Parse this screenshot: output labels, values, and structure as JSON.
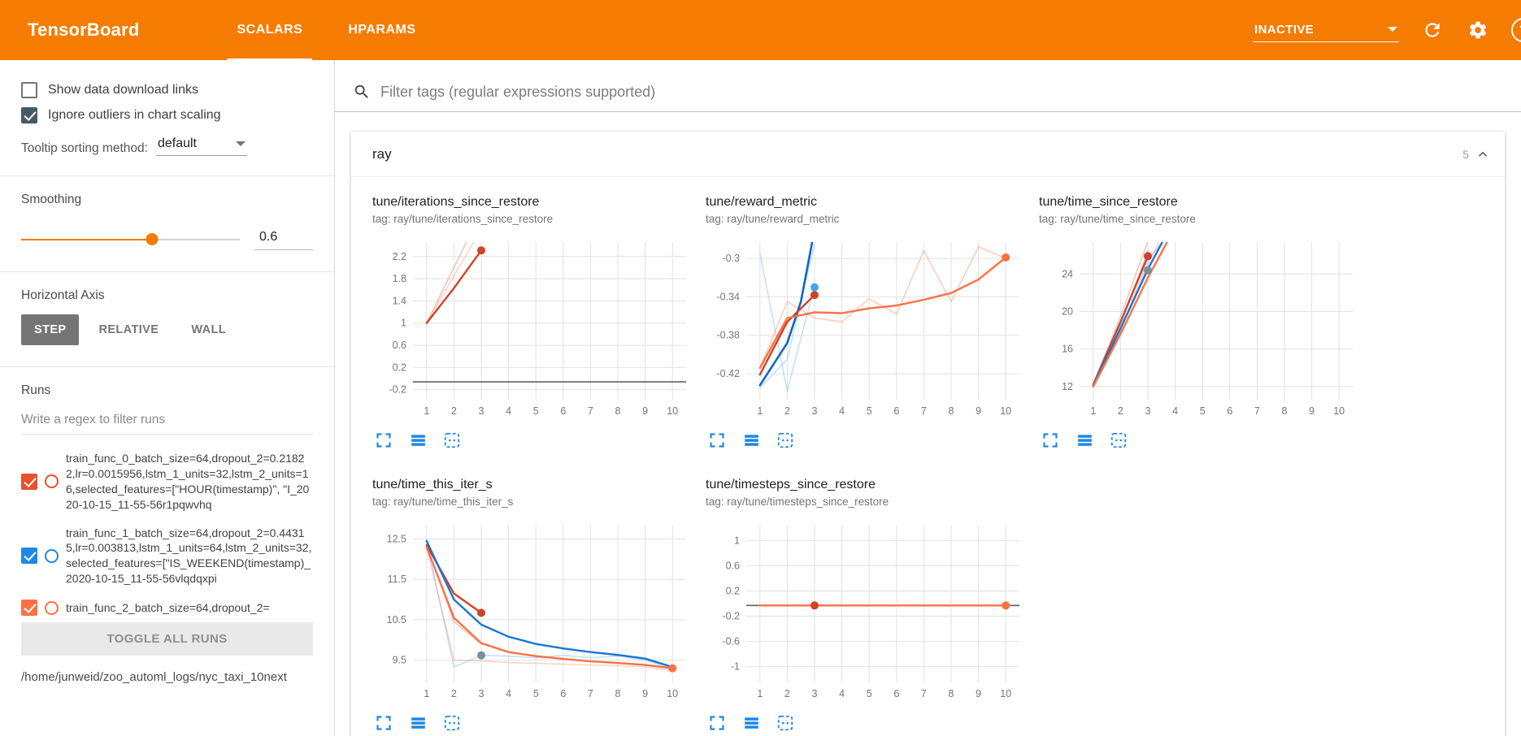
{
  "header": {
    "title": "TensorBoard",
    "tabs": [
      {
        "label": "SCALARS",
        "active": true
      },
      {
        "label": "HPARAMS",
        "active": false
      }
    ],
    "status_dropdown": {
      "value": "INACTIVE"
    },
    "icons": [
      "chevron-down-icon",
      "refresh-icon",
      "settings-icon",
      "help-icon"
    ]
  },
  "colors": {
    "accent": "#f57c00",
    "tool_icon_blue": "#1e88e5",
    "run0": "#cf4327",
    "run1": "#1e88e5",
    "run2": "#ff7043"
  },
  "sidebar": {
    "checkboxes": [
      {
        "label": "Show data download links",
        "checked": false
      },
      {
        "label": "Ignore outliers in chart scaling",
        "checked": true
      }
    ],
    "tooltip_sorting": {
      "label": "Tooltip sorting method:",
      "value": "default"
    },
    "smoothing": {
      "label": "Smoothing",
      "value": "0.6",
      "percent": 60
    },
    "horizontal_axis": {
      "label": "Horizontal Axis",
      "options": [
        {
          "label": "STEP",
          "selected": true
        },
        {
          "label": "RELATIVE",
          "selected": false
        },
        {
          "label": "WALL",
          "selected": false
        }
      ]
    },
    "runs": {
      "label": "Runs",
      "filter_placeholder": "Write a regex to filter runs",
      "items": [
        {
          "label": "train_func_0_batch_size=64,dropout_2=0.21822,lr=0.0015956,lstm_1_units=32,lstm_2_units=16,selected_features=[\"HOUR(timestamp)\", \"I_2020-10-15_11-55-56r1pqwvhq",
          "checked": true,
          "color": "#e8512b"
        },
        {
          "label": "train_func_1_batch_size=64,dropout_2=0.44315,lr=0.003813,lstm_1_units=64,lstm_2_units=32,selected_features=[\"IS_WEEKEND(timestamp)_2020-10-15_11-55-56vlqdqxpi",
          "checked": true,
          "color": "#1e88e5"
        },
        {
          "label": "train_func_2_batch_size=64,dropout_2=",
          "checked": true,
          "color": "#ff7043"
        }
      ],
      "toggle_all_label": "TOGGLE ALL RUNS",
      "log_dir": "/home/junweid/zoo_automl_logs/nyc_taxi_10next"
    }
  },
  "main": {
    "filter_placeholder": "Filter tags (regular expressions supported)",
    "group": {
      "name": "ray",
      "count": "5"
    }
  },
  "chart_data": [
    {
      "type": "line",
      "title": "tune/iterations_since_restore",
      "tag": "tag: ray/tune/iterations_since_restore",
      "xlim": [
        0.5,
        10.5
      ],
      "ylim": [
        -0.38,
        2.46
      ],
      "xticks": [
        1,
        2,
        3,
        4,
        5,
        6,
        7,
        8,
        9,
        10
      ],
      "yticks": [
        -0.2,
        0.2,
        0.6,
        1,
        1.4,
        1.8,
        2.2
      ],
      "series": [
        {
          "name": "train_func_0 raw",
          "color": "#cf4327",
          "opacity": 0.3,
          "width": 1.6,
          "points": [
            [
              1,
              1
            ],
            [
              2,
              2
            ],
            [
              3,
              3
            ]
          ]
        },
        {
          "name": "train_func_2 raw",
          "color": "#ff7043",
          "opacity": 0.3,
          "width": 1.6,
          "points": [
            [
              1,
              1
            ],
            [
              2,
              1.85
            ],
            [
              3,
              2.7
            ],
            [
              3.6,
              3.3
            ]
          ]
        },
        {
          "name": "train_func_0 smoothed",
          "color": "#cf4327",
          "opacity": 1,
          "width": 2.4,
          "points": [
            [
              1,
              1
            ],
            [
              2,
              1.63
            ],
            [
              3,
              2.31
            ]
          ]
        },
        {
          "name": "constant",
          "color": "#616161",
          "opacity": 1,
          "width": 1.6,
          "points": [
            [
              0.5,
              -0.06
            ],
            [
              10.5,
              -0.06
            ]
          ]
        }
      ],
      "dots": [
        {
          "x": 3,
          "y": 2.31,
          "color": "#cf4327"
        }
      ]
    },
    {
      "type": "line",
      "title": "tune/reward_metric",
      "tag": "tag: ray/tune/reward_metric",
      "xlim": [
        0.5,
        10.5
      ],
      "ylim": [
        -0.447,
        -0.283
      ],
      "xticks": [
        1,
        2,
        3,
        4,
        5,
        6,
        7,
        8,
        9,
        10
      ],
      "yticks": [
        -0.42,
        -0.38,
        -0.34,
        -0.3
      ],
      "series": [
        {
          "name": "train_func_1 raw",
          "color": "#90caf9",
          "opacity": 0.55,
          "width": 1.6,
          "points": [
            [
              1,
              -0.295
            ],
            [
              2,
              -0.438
            ],
            [
              3,
              -0.328
            ]
          ]
        },
        {
          "name": "train_func_1 raw b",
          "color": "#90caf9",
          "opacity": 0.55,
          "width": 1.6,
          "points": [
            [
              1,
              -0.435
            ],
            [
              2,
              -0.405
            ],
            [
              3,
              -0.285
            ]
          ]
        },
        {
          "name": "train_func_2 raw",
          "color": "#ff7043",
          "opacity": 0.35,
          "width": 1.6,
          "points": [
            [
              1,
              -0.414
            ],
            [
              2,
              -0.345
            ],
            [
              3,
              -0.362
            ],
            [
              4,
              -0.366
            ],
            [
              5,
              -0.342
            ],
            [
              6,
              -0.358
            ],
            [
              7,
              -0.292
            ],
            [
              8,
              -0.345
            ],
            [
              9,
              -0.288
            ],
            [
              10,
              -0.3
            ]
          ]
        },
        {
          "name": "train_func_1 smoothed",
          "color": "#1565c0",
          "opacity": 1,
          "width": 2.6,
          "points": [
            [
              1,
              -0.432
            ],
            [
              2,
              -0.388
            ],
            [
              2.5,
              -0.345
            ],
            [
              3,
              -0.27
            ]
          ]
        },
        {
          "name": "train_func_0 smoothed",
          "color": "#cf4327",
          "opacity": 1,
          "width": 2.4,
          "points": [
            [
              1,
              -0.421
            ],
            [
              2,
              -0.366
            ],
            [
              3,
              -0.338
            ]
          ]
        },
        {
          "name": "train_func_2 smoothed",
          "color": "#ff7043",
          "opacity": 1,
          "width": 2.4,
          "points": [
            [
              1,
              -0.414
            ],
            [
              2,
              -0.362
            ],
            [
              3,
              -0.356
            ],
            [
              4,
              -0.357
            ],
            [
              5,
              -0.352
            ],
            [
              6,
              -0.349
            ],
            [
              7,
              -0.343
            ],
            [
              8,
              -0.336
            ],
            [
              9,
              -0.322
            ],
            [
              10,
              -0.299
            ]
          ]
        }
      ],
      "dots": [
        {
          "x": 3,
          "y": -0.338,
          "color": "#cf4327"
        },
        {
          "x": 3,
          "y": -0.33,
          "color": "#42a5f5"
        },
        {
          "x": 10,
          "y": -0.299,
          "color": "#ff7043"
        }
      ]
    },
    {
      "type": "line",
      "title": "tune/time_since_restore",
      "tag": "tag: ray/tune/time_since_restore",
      "xlim": [
        0.5,
        10.5
      ],
      "ylim": [
        10.6,
        27.4
      ],
      "xticks": [
        1,
        2,
        3,
        4,
        5,
        6,
        7,
        8,
        9,
        10
      ],
      "yticks": [
        12,
        16,
        20,
        24
      ],
      "series": [
        {
          "name": "raw a",
          "color": "#9fa8da",
          "opacity": 0.45,
          "width": 1.6,
          "points": [
            [
              1,
              12.1
            ],
            [
              2,
              18
            ],
            [
              3,
              25
            ],
            [
              3.5,
              28
            ]
          ]
        },
        {
          "name": "train_func_0 raw",
          "color": "#cf4327",
          "opacity": 0.3,
          "width": 1.6,
          "points": [
            [
              1,
              12.2
            ],
            [
              2,
              19.5
            ],
            [
              3,
              27.5
            ]
          ]
        },
        {
          "name": "train_func_1 raw",
          "color": "#1e88e5",
          "opacity": 0.3,
          "width": 1.6,
          "points": [
            [
              1,
              12.1
            ],
            [
              2,
              18.5
            ],
            [
              3,
              26.5
            ]
          ]
        },
        {
          "name": "train_func_2 raw",
          "color": "#ff7043",
          "opacity": 0.3,
          "width": 1.6,
          "points": [
            [
              1,
              12
            ],
            [
              2,
              18
            ],
            [
              3,
              25.5
            ],
            [
              3.7,
              28
            ]
          ]
        },
        {
          "name": "train_func_0 smoothed",
          "color": "#cf4327",
          "opacity": 1,
          "width": 2.4,
          "points": [
            [
              1,
              12.2
            ],
            [
              2,
              18.9
            ],
            [
              3,
              25.9
            ]
          ]
        },
        {
          "name": "train_func_1 smoothed",
          "color": "#1976d2",
          "opacity": 1,
          "width": 2.4,
          "points": [
            [
              1,
              12.1
            ],
            [
              2,
              18.2
            ],
            [
              3,
              24.5
            ],
            [
              4,
              30
            ]
          ]
        },
        {
          "name": "train_func_2 smoothed",
          "color": "#ff7043",
          "opacity": 1,
          "width": 2.4,
          "points": [
            [
              1,
              12
            ],
            [
              2,
              17.6
            ],
            [
              3,
              23.6
            ],
            [
              4,
              29
            ]
          ]
        }
      ],
      "dots": [
        {
          "x": 3,
          "y": 25.9,
          "color": "#cf4327"
        },
        {
          "x": 3,
          "y": 24.4,
          "color": "#78909c"
        }
      ]
    },
    {
      "type": "line",
      "title": "tune/time_this_iter_s",
      "tag": "tag: ray/tune/time_this_iter_s",
      "xlim": [
        0.5,
        10.5
      ],
      "ylim": [
        8.95,
        12.85
      ],
      "xticks": [
        1,
        2,
        3,
        4,
        5,
        6,
        7,
        8,
        9,
        10
      ],
      "yticks": [
        9.5,
        10.5,
        11.5,
        12.5
      ],
      "series": [
        {
          "name": "train_func_0 raw",
          "color": "#cf4327",
          "opacity": 0.3,
          "width": 1.6,
          "points": [
            [
              1,
              12.35
            ],
            [
              2,
              10.45
            ],
            [
              3,
              9.9
            ]
          ]
        },
        {
          "name": "train_func_1 raw",
          "color": "#90caf9",
          "opacity": 0.55,
          "width": 1.6,
          "points": [
            [
              1,
              12.45
            ],
            [
              2,
              9.33
            ],
            [
              3,
              9.62
            ],
            [
              4,
              9.6
            ],
            [
              5,
              9.56
            ],
            [
              6,
              9.62
            ],
            [
              7,
              9.56
            ],
            [
              8,
              9.6
            ],
            [
              9,
              9.5
            ],
            [
              10,
              9.28
            ]
          ]
        },
        {
          "name": "train_func_2 raw",
          "color": "#ff7043",
          "opacity": 0.3,
          "width": 1.6,
          "points": [
            [
              1,
              12.3
            ],
            [
              2,
              9.5
            ],
            [
              3,
              9.48
            ],
            [
              4,
              9.44
            ],
            [
              5,
              9.42
            ],
            [
              6,
              9.4
            ],
            [
              7,
              9.38
            ],
            [
              8,
              9.36
            ],
            [
              9,
              9.33
            ],
            [
              10,
              9.24
            ]
          ]
        },
        {
          "name": "train_func_0 smoothed",
          "color": "#cf4327",
          "opacity": 1,
          "width": 2.4,
          "points": [
            [
              1,
              12.35
            ],
            [
              2,
              11.15
            ],
            [
              3,
              10.67
            ]
          ]
        },
        {
          "name": "train_func_1 smoothed",
          "color": "#1976d2",
          "opacity": 1,
          "width": 2.4,
          "points": [
            [
              1,
              12.45
            ],
            [
              2,
              11.0
            ],
            [
              3,
              10.38
            ],
            [
              4,
              10.08
            ],
            [
              5,
              9.9
            ],
            [
              6,
              9.79
            ],
            [
              7,
              9.7
            ],
            [
              8,
              9.63
            ],
            [
              9,
              9.54
            ],
            [
              10,
              9.33
            ]
          ]
        },
        {
          "name": "train_func_2 smoothed",
          "color": "#ff7043",
          "opacity": 1,
          "width": 2.4,
          "points": [
            [
              1,
              12.3
            ],
            [
              2,
              10.55
            ],
            [
              3,
              9.92
            ],
            [
              4,
              9.7
            ],
            [
              5,
              9.6
            ],
            [
              6,
              9.53
            ],
            [
              7,
              9.47
            ],
            [
              8,
              9.43
            ],
            [
              9,
              9.38
            ],
            [
              10,
              9.3
            ]
          ]
        }
      ],
      "dots": [
        {
          "x": 3,
          "y": 10.67,
          "color": "#cf4327"
        },
        {
          "x": 3,
          "y": 9.62,
          "color": "#78909c"
        },
        {
          "x": 10,
          "y": 9.3,
          "color": "#ff7043"
        }
      ]
    },
    {
      "type": "line",
      "title": "tune/timesteps_since_restore",
      "tag": "tag: ray/tune/timesteps_since_restore",
      "xlim": [
        0.5,
        10.5
      ],
      "ylim": [
        -1.25,
        1.25
      ],
      "xticks": [
        1,
        2,
        3,
        4,
        5,
        6,
        7,
        8,
        9,
        10
      ],
      "yticks": [
        -1,
        -0.6,
        -0.2,
        0.2,
        0.6,
        1
      ],
      "series": [
        {
          "name": "constant",
          "color": "#616161",
          "opacity": 1,
          "width": 1.6,
          "points": [
            [
              0.5,
              -0.03
            ],
            [
              10.5,
              -0.03
            ]
          ]
        },
        {
          "name": "train_func_2 smoothed",
          "color": "#ff7043",
          "opacity": 1,
          "width": 2.4,
          "points": [
            [
              1,
              -0.03
            ],
            [
              10,
              -0.03
            ]
          ]
        }
      ],
      "dots": [
        {
          "x": 3,
          "y": -0.03,
          "color": "#cf4327"
        },
        {
          "x": 10,
          "y": -0.03,
          "color": "#ff7043"
        }
      ]
    }
  ]
}
